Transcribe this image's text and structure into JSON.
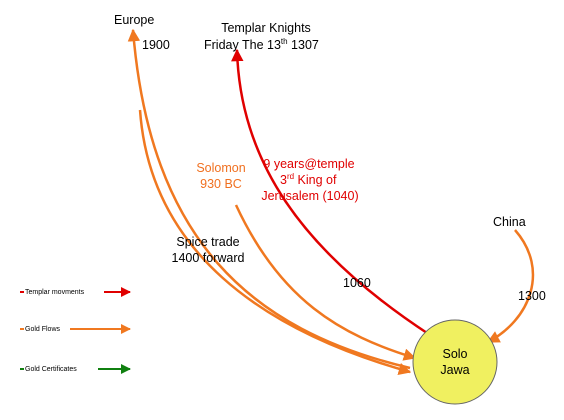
{
  "nodes": {
    "europe": "Europe",
    "europe_year": "1900",
    "templar": {
      "line1": "Templar Knights",
      "line2": {
        "pre": "Friday The 13",
        "sup": "th",
        "post": " 1307"
      }
    },
    "solomon": {
      "line1": "Solomon",
      "line2": "930 BC"
    },
    "temple": {
      "line1": "9 years@temple",
      "line2": {
        "pre": "3",
        "sup": "rd",
        "post": " King of"
      },
      "line3": "Jerusalem (1040)"
    },
    "china": "China",
    "spice": {
      "line1": "Spice trade",
      "line2": "1400 forward"
    },
    "red_year": "1060",
    "china_year": "1300",
    "hub": {
      "line1": "Solo",
      "line2": "Jawa"
    }
  },
  "legend": [
    "Templar movments",
    "Gold Flows",
    "Gold Certificates"
  ]
}
